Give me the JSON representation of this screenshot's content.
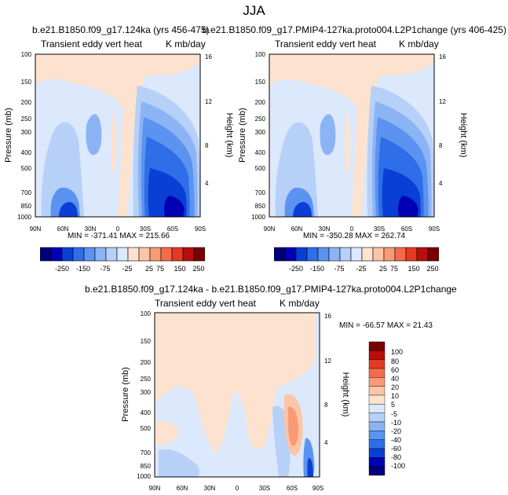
{
  "page_title": "JJA",
  "colors": {
    "ramp_top": [
      "#00007a",
      "#0000b5",
      "#0a3fd6",
      "#2e6ee8",
      "#5c93f0",
      "#8cb4f5",
      "#b7d0f8",
      "#dce8fb",
      "#fde3cf",
      "#fbc5a6",
      "#f99a76",
      "#f46b4a",
      "#e43a24",
      "#b80e0e",
      "#7a0000"
    ],
    "ramp_diff": [
      "#00007a",
      "#0000b5",
      "#0a3fd6",
      "#2e6ee8",
      "#5c93f0",
      "#8cb4f5",
      "#b7d0f8",
      "#dce8fb",
      "#fde3cf",
      "#fbc5a6",
      "#f99a76",
      "#f46b4a",
      "#e43a24",
      "#b80e0e",
      "#7a0000"
    ],
    "background_field": "#dbe7fb",
    "light_positive": "#fde8d6"
  },
  "chart_data": [
    {
      "type": "contour",
      "id": "panel-left",
      "title": "b.e21.B1850.f09_g17.124ka (yrs 456-475)",
      "left_subtitle": "Transient eddy vert heat",
      "right_subtitle": "K mb/day",
      "ylabel": "Pressure (mb)",
      "ylabel_right": "Height (km)",
      "x_ticks": [
        "90N",
        "60N",
        "30N",
        "0",
        "30S",
        "60S",
        "90S"
      ],
      "y_ticks": [
        "100",
        "150",
        "200",
        "250",
        "300",
        "400",
        "500",
        "700",
        "850",
        "1000"
      ],
      "y_ticks_right": [
        "16",
        "12",
        "8",
        "4"
      ],
      "ylim": [
        1000,
        100
      ],
      "min_max_label": "MIN = -371.41   MAX = 215.66",
      "min": -371.41,
      "max": 215.66,
      "colorbar": {
        "labels": [
          "-250",
          "-150",
          "-75",
          "-25",
          "25",
          "75",
          "150",
          "250"
        ]
      }
    },
    {
      "type": "contour",
      "id": "panel-right",
      "title": "b.e21.B1850.f09_g17.PMIP4-127ka.proto004.L2P1change (yrs 406-425)",
      "left_subtitle": "Transient eddy vert heat",
      "right_subtitle": "K mb/day",
      "ylabel": "Pressure (mb)",
      "ylabel_right": "Height (km)",
      "x_ticks": [
        "90N",
        "60N",
        "30N",
        "0",
        "30S",
        "60S",
        "90S"
      ],
      "y_ticks": [
        "100",
        "150",
        "200",
        "250",
        "300",
        "400",
        "500",
        "700",
        "850",
        "1000"
      ],
      "y_ticks_right": [
        "16",
        "12",
        "8",
        "4"
      ],
      "ylim": [
        1000,
        100
      ],
      "min_max_label": "MIN = -350.28   MAX = 262.74",
      "min": -350.28,
      "max": 262.74,
      "colorbar": {
        "labels": [
          "-250",
          "-150",
          "-75",
          "-25",
          "25",
          "75",
          "150",
          "250"
        ]
      }
    },
    {
      "type": "contour",
      "id": "panel-diff",
      "title": "b.e21.B1850.f09_g17.124ka - b.e21.B1850.f09_g17.PMIP4-127ka.proto004.L2P1change",
      "left_subtitle": "Transient eddy vert heat",
      "right_subtitle": "K mb/day",
      "ylabel": "Pressure (mb)",
      "ylabel_right": "Height (km)",
      "x_ticks": [
        "90N",
        "60N",
        "30N",
        "0",
        "30S",
        "60S",
        "90S"
      ],
      "y_ticks": [
        "100",
        "150",
        "200",
        "250",
        "300",
        "400",
        "500",
        "700",
        "850",
        "1000"
      ],
      "y_ticks_right": [
        "16",
        "12",
        "8",
        "4"
      ],
      "ylim": [
        1000,
        100
      ],
      "min_max_label": "MIN = -66.57   MAX =  21.43",
      "min": -66.57,
      "max": 21.43,
      "colorbar": {
        "labels": [
          "100",
          "80",
          "60",
          "40",
          "20",
          "10",
          "5",
          "-5",
          "-10",
          "-20",
          "-40",
          "-60",
          "-80",
          "-100"
        ]
      }
    }
  ]
}
